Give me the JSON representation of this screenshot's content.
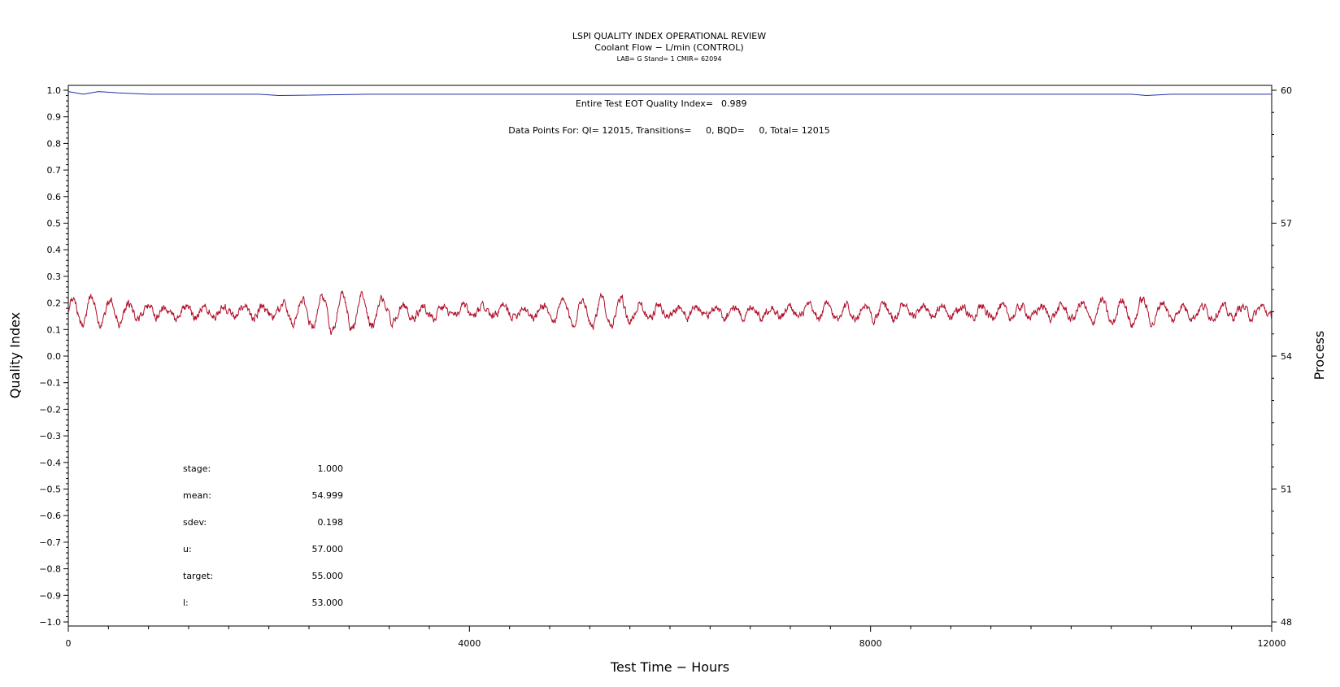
{
  "colors": {
    "quality_index_line": "#1f2fa8",
    "process_line": "#b0102a",
    "axis": "#000000"
  },
  "chart_data": {
    "type": "line",
    "title": "LSPI QUALITY INDEX OPERATIONAL REVIEW",
    "subtitle": "Coolant Flow − L/min (CONTROL)",
    "subtitle2": "LAB= G Stand= 1 CMIR= 62094",
    "xlabel": "Test Time − Hours",
    "ylabel_left": "Quality Index",
    "ylabel_right": "Process",
    "xlim": [
      0,
      12000
    ],
    "ylim_left": [
      -1.0,
      1.0
    ],
    "ylim_right": [
      48,
      60
    ],
    "x_ticks": [
      0,
      4000,
      8000,
      12000
    ],
    "x_tick_labels": [
      "0",
      "4000",
      "8000",
      "12000"
    ],
    "y_left_ticks": [
      1.0,
      0.9,
      0.8,
      0.7,
      0.6,
      0.5,
      0.4,
      0.3,
      0.2,
      0.1,
      0.0,
      -0.1,
      -0.2,
      -0.3,
      -0.4,
      -0.5,
      -0.6,
      -0.7,
      -0.8,
      -0.9,
      -1.0
    ],
    "y_left_tick_labels": [
      "1.0",
      "0.9",
      "0.8",
      "0.7",
      "0.6",
      "0.5",
      "0.4",
      "0.3",
      "0.2",
      "0.1",
      "0.0",
      "−0.1",
      "−0.2",
      "−0.3",
      "−0.4",
      "−0.5",
      "−0.6",
      "−0.7",
      "−0.8",
      "−0.9",
      "−1.0"
    ],
    "y_right_ticks": [
      60,
      57,
      54,
      51,
      48
    ],
    "y_right_tick_labels": [
      "60",
      "57",
      "54",
      "51",
      "48"
    ],
    "annotations": {
      "eot_label": "Entire Test EOT Quality Index=",
      "eot_value": "0.989",
      "data_points_text": "Data Points For: QI= 12015, Transitions=     0, BQD=     0, Total= 12015"
    },
    "stats": [
      {
        "label": "stage:",
        "value": "1.000"
      },
      {
        "label": "mean:",
        "value": "54.999"
      },
      {
        "label": "sdev:",
        "value": "0.198"
      },
      {
        "label": "u:",
        "value": "57.000"
      },
      {
        "label": "target:",
        "value": "55.000"
      },
      {
        "label": "l:",
        "value": "53.000"
      }
    ],
    "series": [
      {
        "axis": "left",
        "x": [
          0,
          150,
          300,
          500,
          800,
          1500,
          1900,
          2100,
          3000,
          6000,
          9000,
          10600,
          10750,
          11000,
          12000
        ],
        "values": [
          0.995,
          0.985,
          0.995,
          0.99,
          0.985,
          0.985,
          0.985,
          0.98,
          0.985,
          0.985,
          0.985,
          0.985,
          0.98,
          0.985,
          0.985
        ]
      },
      {
        "axis": "right",
        "x": [
          0,
          12000
        ],
        "values": [
          55.0,
          55.0
        ],
        "mean": 54.999,
        "sdev": 0.198,
        "range_observed": [
          54.4,
          55.6
        ]
      }
    ]
  }
}
